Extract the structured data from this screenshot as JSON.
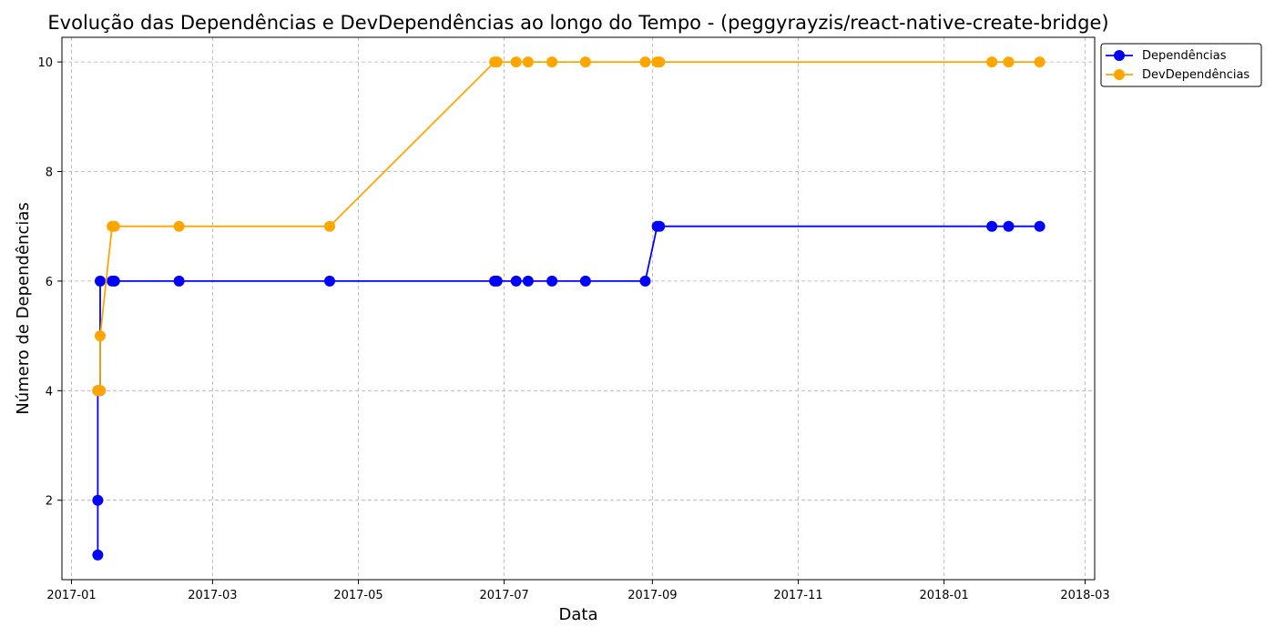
{
  "chart_data": {
    "type": "line",
    "title": "Evolução das Dependências e DevDependências ao longo do Tempo - (peggyrayzis/react-native-create-bridge)",
    "xlabel": "Data",
    "ylabel": "Número de Dependências",
    "xlim": [
      "2016-12-28",
      "2018-03-05"
    ],
    "ylim": [
      0.55,
      10.45
    ],
    "x_ticks": [
      "2017-01",
      "2017-03",
      "2017-05",
      "2017-07",
      "2017-09",
      "2017-11",
      "2018-01",
      "2018-03"
    ],
    "x_tick_dates": [
      "2017-01-01",
      "2017-03-01",
      "2017-05-01",
      "2017-07-01",
      "2017-09-01",
      "2017-11-01",
      "2018-01-01",
      "2018-03-01"
    ],
    "y_ticks": [
      2,
      4,
      6,
      8,
      10
    ],
    "grid": true,
    "legend_position": "outside-top-right",
    "series": [
      {
        "name": "Dependências",
        "color": "#0000ff",
        "points": [
          {
            "x": "2017-01-12",
            "y": 1
          },
          {
            "x": "2017-01-12",
            "y": 2
          },
          {
            "x": "2017-01-12",
            "y": 4
          },
          {
            "x": "2017-01-13",
            "y": 4
          },
          {
            "x": "2017-01-13",
            "y": 6
          },
          {
            "x": "2017-01-18",
            "y": 6
          },
          {
            "x": "2017-01-19",
            "y": 6
          },
          {
            "x": "2017-02-15",
            "y": 6
          },
          {
            "x": "2017-04-19",
            "y": 6
          },
          {
            "x": "2017-06-27",
            "y": 6
          },
          {
            "x": "2017-06-28",
            "y": 6
          },
          {
            "x": "2017-07-06",
            "y": 6
          },
          {
            "x": "2017-07-11",
            "y": 6
          },
          {
            "x": "2017-07-21",
            "y": 6
          },
          {
            "x": "2017-08-04",
            "y": 6
          },
          {
            "x": "2017-08-29",
            "y": 6
          },
          {
            "x": "2017-09-03",
            "y": 7
          },
          {
            "x": "2017-09-04",
            "y": 7
          },
          {
            "x": "2018-01-21",
            "y": 7
          },
          {
            "x": "2018-01-28",
            "y": 7
          },
          {
            "x": "2018-02-10",
            "y": 7
          }
        ]
      },
      {
        "name": "DevDependências",
        "color": "#ffa500",
        "points": [
          {
            "x": "2017-01-12",
            "y": 4
          },
          {
            "x": "2017-01-12",
            "y": 4
          },
          {
            "x": "2017-01-12",
            "y": 4
          },
          {
            "x": "2017-01-13",
            "y": 4
          },
          {
            "x": "2017-01-13",
            "y": 5
          },
          {
            "x": "2017-01-18",
            "y": 7
          },
          {
            "x": "2017-01-19",
            "y": 7
          },
          {
            "x": "2017-02-15",
            "y": 7
          },
          {
            "x": "2017-04-19",
            "y": 7
          },
          {
            "x": "2017-06-27",
            "y": 10
          },
          {
            "x": "2017-06-28",
            "y": 10
          },
          {
            "x": "2017-07-06",
            "y": 10
          },
          {
            "x": "2017-07-11",
            "y": 10
          },
          {
            "x": "2017-07-21",
            "y": 10
          },
          {
            "x": "2017-08-04",
            "y": 10
          },
          {
            "x": "2017-08-29",
            "y": 10
          },
          {
            "x": "2017-09-03",
            "y": 10
          },
          {
            "x": "2017-09-04",
            "y": 10
          },
          {
            "x": "2018-01-21",
            "y": 10
          },
          {
            "x": "2018-01-28",
            "y": 10
          },
          {
            "x": "2018-02-10",
            "y": 10
          }
        ]
      }
    ]
  }
}
